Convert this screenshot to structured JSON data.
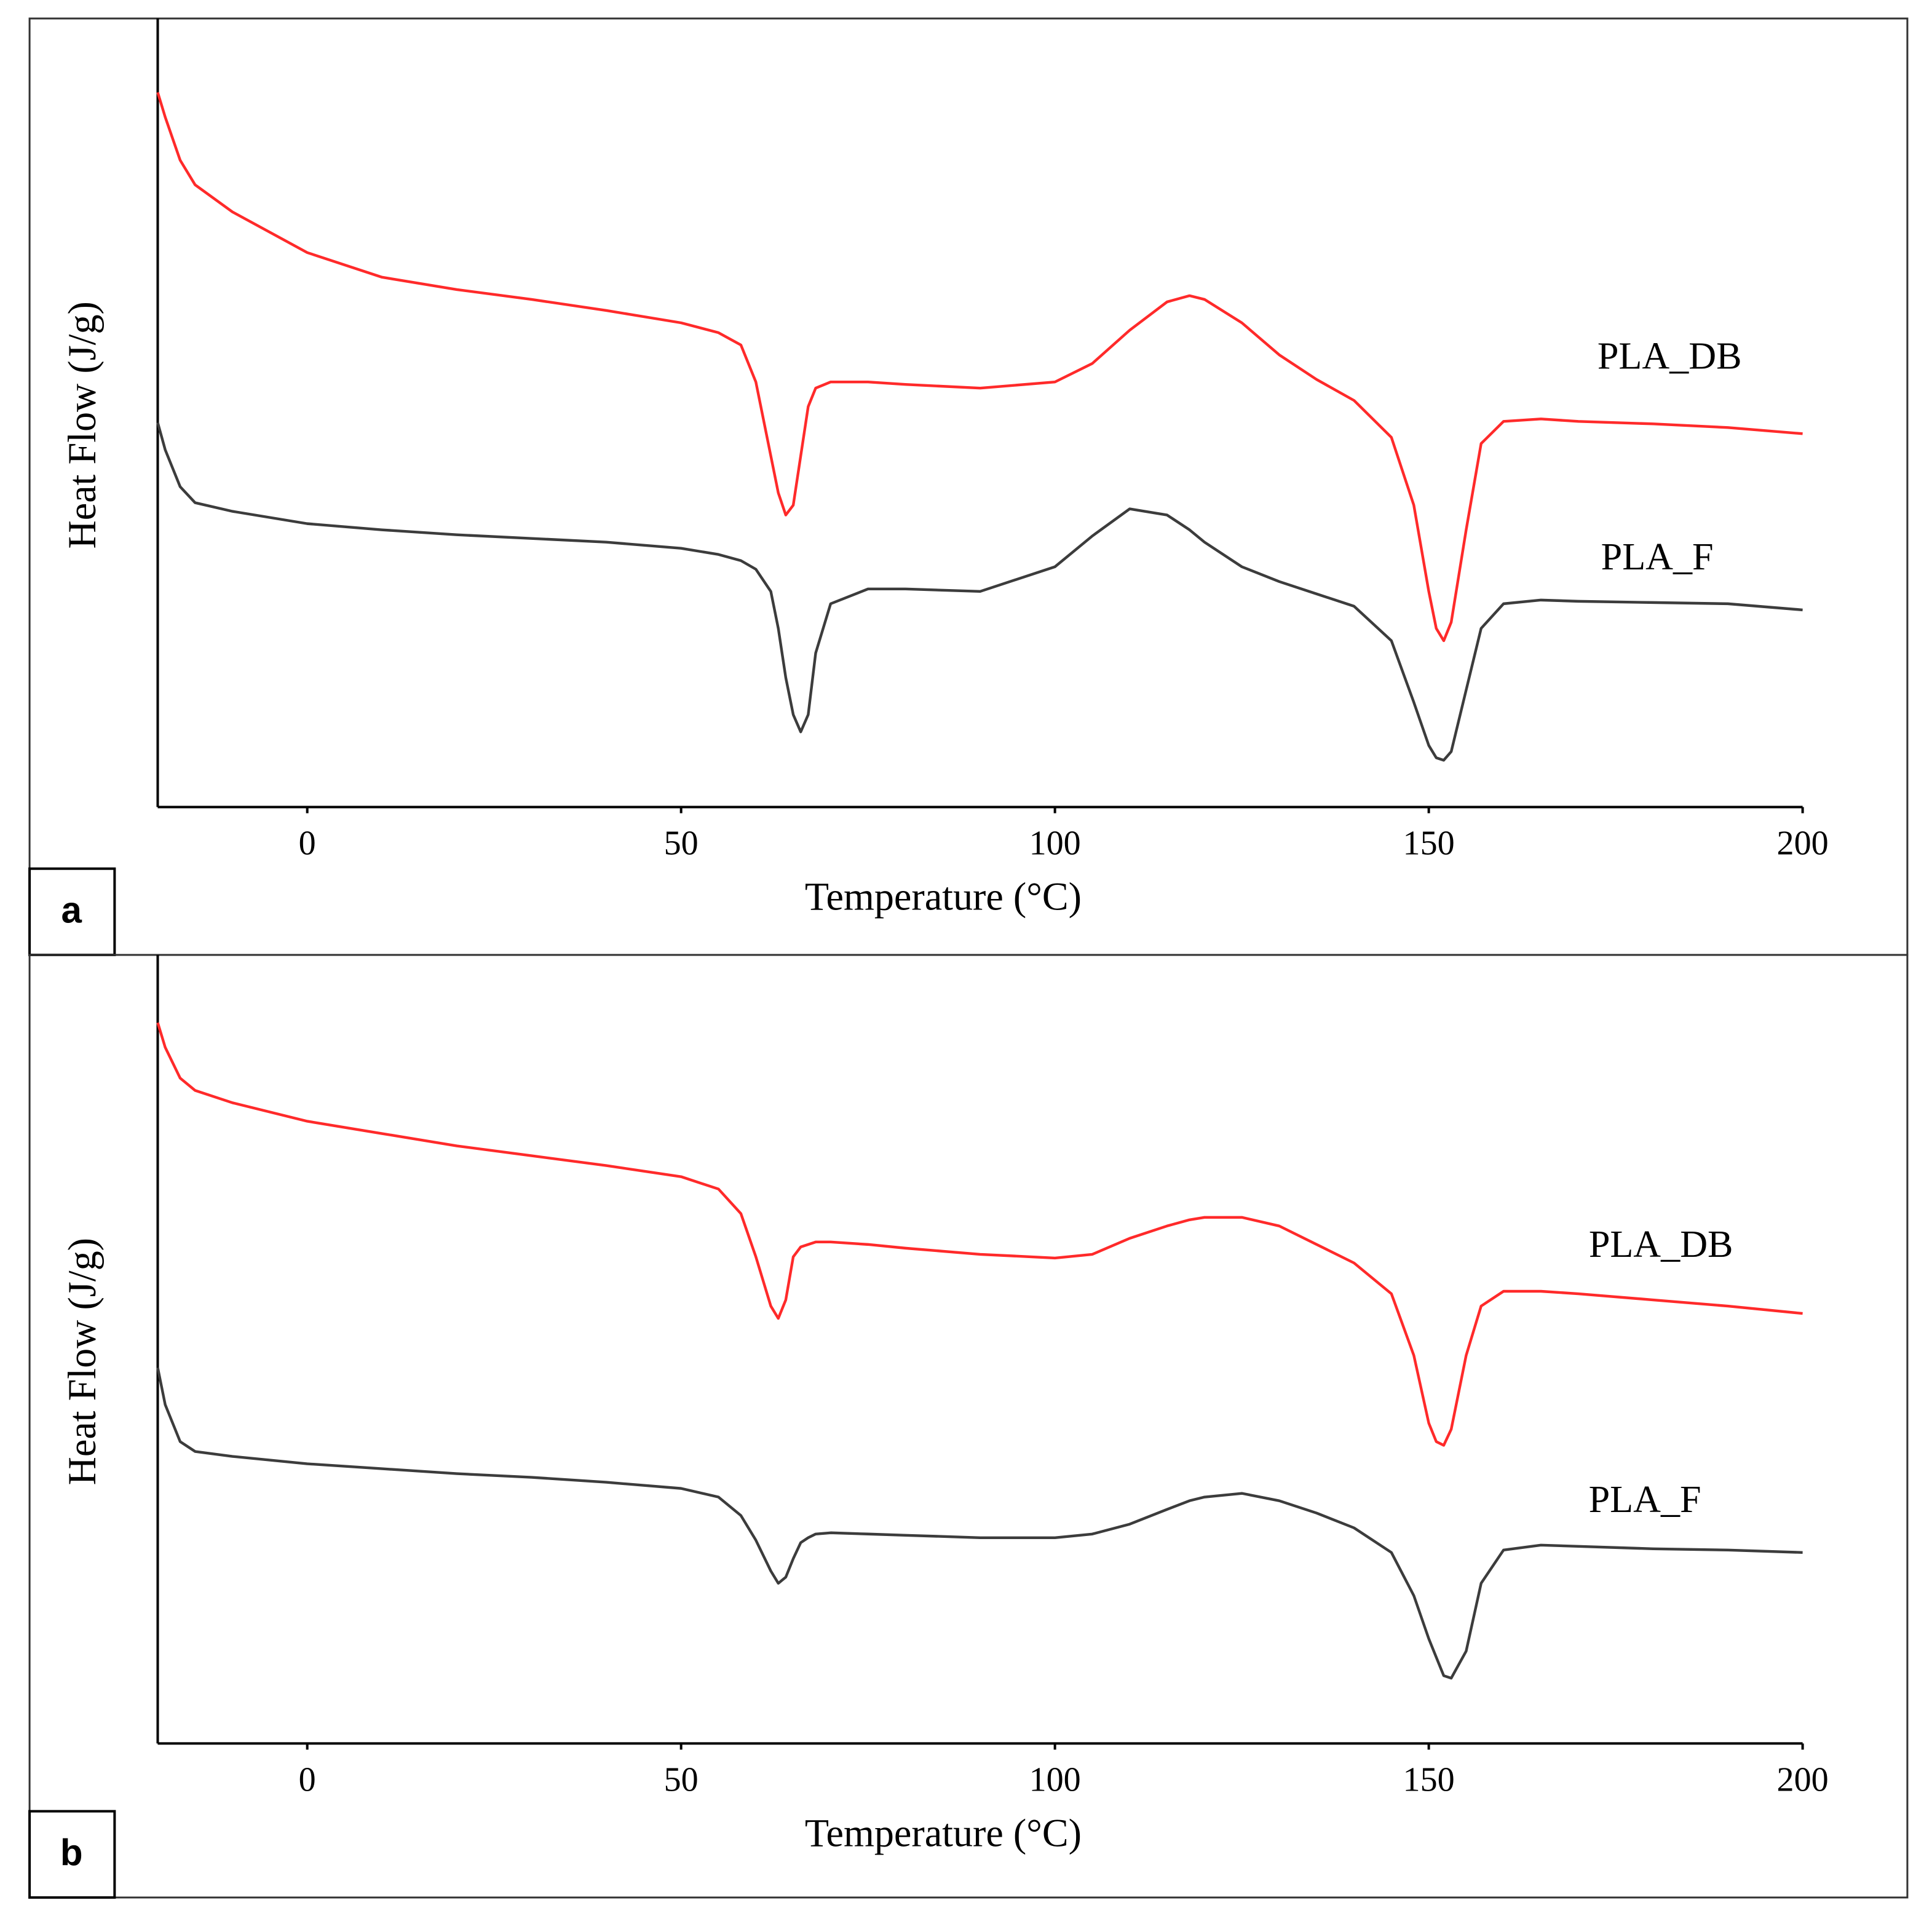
{
  "chart_data": [
    {
      "type": "line",
      "label": "a",
      "xlabel": "Temperature (°C)",
      "ylabel": "Heat Flow (J/g)",
      "xlim": [
        -20,
        200
      ],
      "xticks": [
        0,
        50,
        100,
        150,
        200
      ],
      "ylim": [
        0,
        620
      ],
      "x": [
        -20,
        -19,
        -17,
        -15,
        -10,
        0,
        10,
        20,
        30,
        40,
        50,
        55,
        58,
        60,
        62,
        63,
        64,
        65,
        66,
        67,
        68,
        70,
        75,
        80,
        90,
        100,
        105,
        110,
        115,
        118,
        120,
        125,
        130,
        135,
        140,
        145,
        148,
        150,
        151,
        152,
        153,
        155,
        157,
        160,
        165,
        170,
        180,
        190,
        200
      ],
      "series": [
        {
          "name": "PLA_DB",
          "color": "#ff2a2a",
          "values": [
            580,
            560,
            525,
            505,
            483,
            450,
            430,
            420,
            412,
            403,
            393,
            385,
            375,
            345,
            285,
            255,
            237,
            245,
            285,
            325,
            340,
            345,
            345,
            343,
            340,
            345,
            360,
            387,
            410,
            415,
            412,
            393,
            367,
            347,
            330,
            300,
            245,
            175,
            145,
            135,
            150,
            225,
            295,
            313,
            315,
            313,
            311,
            308,
            303
          ]
        },
        {
          "name": "PLA_F",
          "color": "#3c3c3c",
          "values": [
            312,
            290,
            260,
            247,
            240,
            230,
            225,
            221,
            218,
            215,
            210,
            205,
            200,
            193,
            175,
            145,
            105,
            75,
            61,
            75,
            125,
            165,
            177,
            177,
            175,
            195,
            220,
            242,
            237,
            225,
            215,
            195,
            183,
            173,
            163,
            135,
            85,
            50,
            40,
            38,
            45,
            95,
            145,
            165,
            168,
            167,
            166,
            165,
            160
          ]
        }
      ]
    },
    {
      "type": "line",
      "label": "b",
      "xlabel": "Temperature (°C)",
      "ylabel": "Heat Flow (J/g)",
      "xlim": [
        -20,
        200
      ],
      "xticks": [
        0,
        50,
        100,
        150,
        200
      ],
      "ylim": [
        0,
        620
      ],
      "x": [
        -20,
        -19,
        -17,
        -15,
        -10,
        0,
        10,
        20,
        30,
        40,
        50,
        55,
        58,
        60,
        62,
        63,
        64,
        65,
        66,
        67,
        68,
        70,
        75,
        80,
        90,
        100,
        105,
        110,
        115,
        118,
        120,
        125,
        130,
        135,
        140,
        145,
        148,
        150,
        151,
        152,
        153,
        155,
        157,
        160,
        165,
        170,
        180,
        190,
        200
      ],
      "series": [
        {
          "name": "PLA_DB",
          "color": "#ff2a2a",
          "values": [
            585,
            565,
            540,
            530,
            520,
            505,
            495,
            485,
            477,
            469,
            460,
            450,
            430,
            395,
            355,
            345,
            360,
            395,
            403,
            405,
            407,
            407,
            405,
            402,
            397,
            394,
            397,
            410,
            420,
            425,
            427,
            427,
            420,
            405,
            390,
            365,
            315,
            260,
            245,
            242,
            255,
            315,
            355,
            367,
            367,
            365,
            360,
            355,
            349
          ]
        },
        {
          "name": "PLA_F",
          "color": "#3c3c3c",
          "values": [
            305,
            275,
            245,
            237,
            233,
            227,
            223,
            219,
            216,
            212,
            207,
            200,
            185,
            165,
            140,
            130,
            135,
            150,
            163,
            167,
            170,
            171,
            170,
            169,
            167,
            167,
            170,
            178,
            190,
            197,
            200,
            203,
            197,
            187,
            175,
            155,
            120,
            85,
            70,
            55,
            53,
            75,
            130,
            157,
            161,
            160,
            158,
            157,
            155
          ]
        }
      ]
    }
  ]
}
